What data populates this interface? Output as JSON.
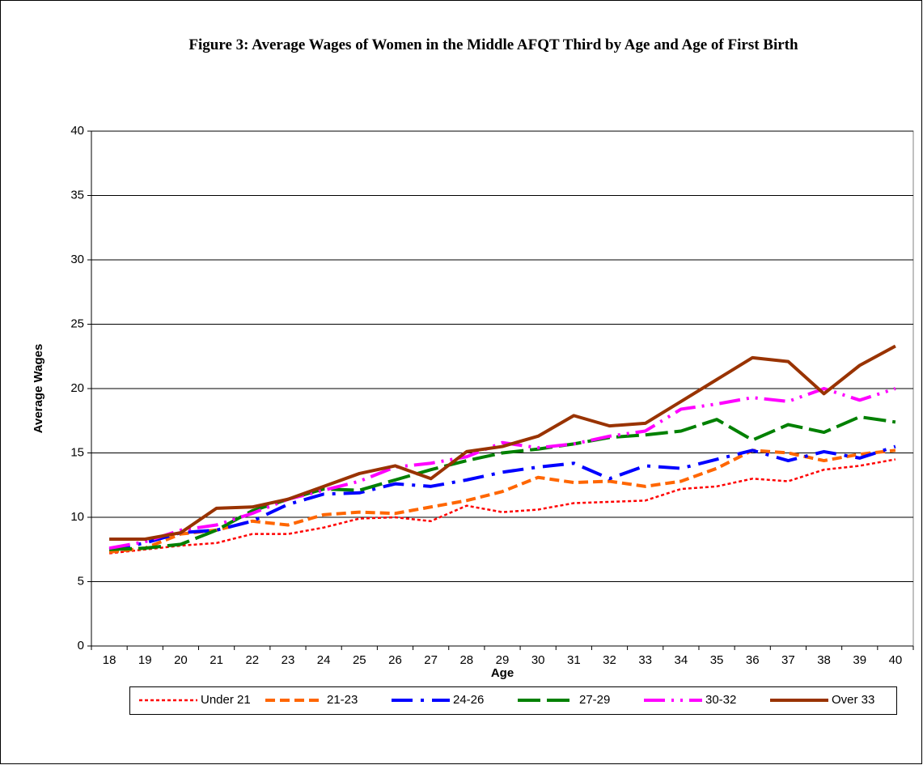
{
  "chart_data": {
    "type": "line",
    "title": "Figure 3: Average Wages of Women in the Middle AFQT Third by Age and Age of First Birth",
    "x_label": "Age",
    "y_label": "Average Wages",
    "categories": [
      "18",
      "19",
      "20",
      "21",
      "22",
      "23",
      "24",
      "25",
      "26",
      "27",
      "28",
      "29",
      "30",
      "31",
      "32",
      "33",
      "34",
      "35",
      "36",
      "37",
      "38",
      "39",
      "40"
    ],
    "ylim": [
      0,
      40
    ],
    "yticks": [
      0,
      5,
      10,
      15,
      20,
      25,
      30,
      35,
      40
    ],
    "grid": true,
    "legend": "bottom",
    "series": [
      {
        "name": "Under 21",
        "color": "#ff0000",
        "values": [
          7.2,
          7.5,
          7.8,
          8.0,
          8.7,
          8.7,
          9.2,
          9.9,
          10.0,
          9.7,
          10.9,
          10.4,
          10.6,
          11.1,
          11.2,
          11.3,
          12.2,
          12.4,
          13.0,
          12.8,
          13.7,
          14.0,
          14.5
        ]
      },
      {
        "name": "21-23",
        "color": "#ff6600",
        "values": [
          7.3,
          7.6,
          8.7,
          9.0,
          9.7,
          9.4,
          10.2,
          10.4,
          10.3,
          10.8,
          11.3,
          12.0,
          13.1,
          12.7,
          12.8,
          12.4,
          12.8,
          13.8,
          15.2,
          15.0,
          14.4,
          14.9,
          15.2
        ]
      },
      {
        "name": "24-26",
        "color": "#0000ff",
        "values": [
          7.5,
          8.0,
          8.8,
          9.0,
          9.7,
          11.0,
          11.8,
          11.9,
          12.6,
          12.4,
          12.9,
          13.5,
          13.9,
          14.2,
          13.0,
          14.0,
          13.8,
          14.5,
          15.2,
          14.4,
          15.1,
          14.6,
          15.5
        ]
      },
      {
        "name": "27-29",
        "color": "#008000",
        "values": [
          7.5,
          7.6,
          7.9,
          9.0,
          10.5,
          11.4,
          12.2,
          12.1,
          12.9,
          13.7,
          14.4,
          15.0,
          15.3,
          15.7,
          16.2,
          16.4,
          16.7,
          17.6,
          16.0,
          17.2,
          16.6,
          17.8,
          17.4
        ]
      },
      {
        "name": "30-32",
        "color": "#ff00ff",
        "values": [
          7.6,
          8.1,
          9.0,
          9.4,
          10.3,
          11.4,
          12.1,
          12.8,
          13.9,
          14.2,
          14.7,
          15.8,
          15.4,
          15.7,
          16.3,
          16.7,
          18.4,
          18.8,
          19.3,
          19.0,
          20.0,
          19.1,
          20.0
        ]
      },
      {
        "name": "Over 33",
        "color": "#993300",
        "values": [
          8.3,
          8.3,
          8.8,
          10.7,
          10.8,
          11.4,
          12.4,
          13.4,
          14.0,
          13.0,
          15.1,
          15.5,
          16.3,
          17.9,
          17.1,
          17.3,
          19.0,
          20.7,
          22.4,
          22.1,
          19.6,
          21.8,
          23.3
        ]
      }
    ]
  }
}
